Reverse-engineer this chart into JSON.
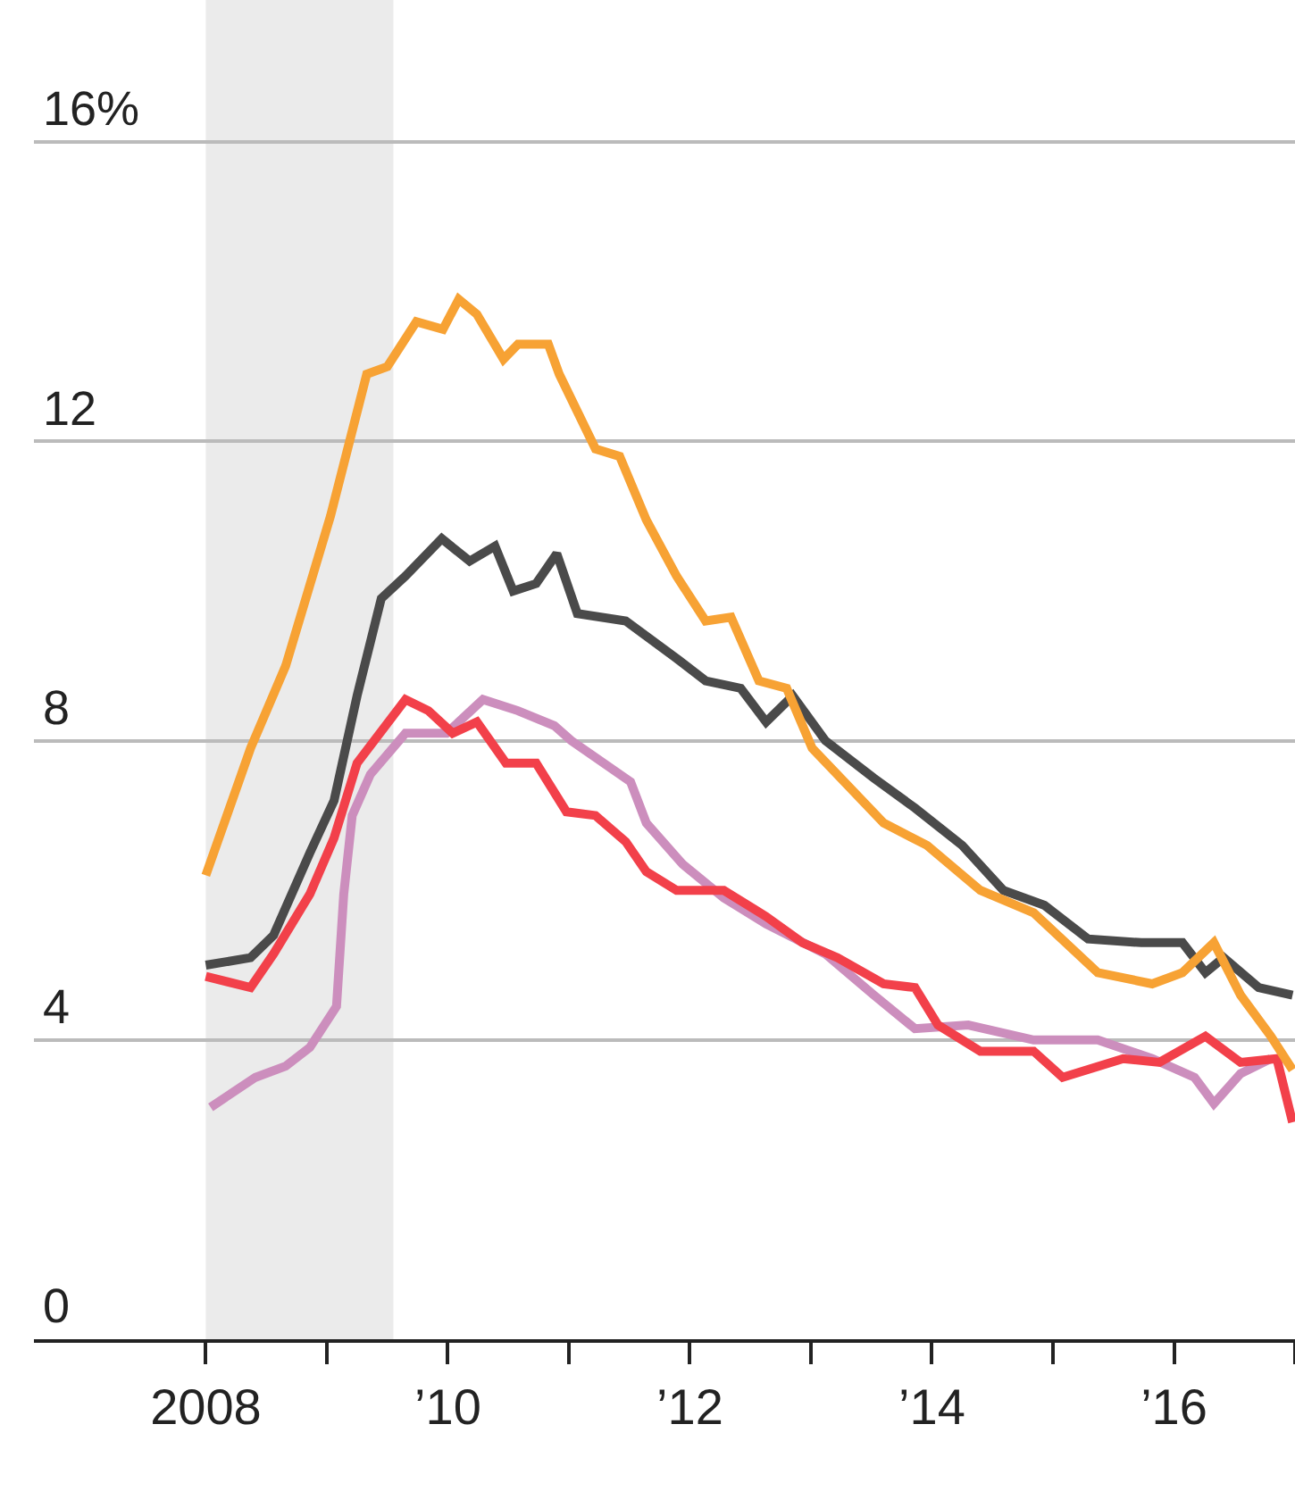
{
  "chart_data": {
    "type": "line",
    "xlim": [
      2006.58,
      2017.0
    ],
    "xticks": [
      {
        "value": 2008,
        "label": "2008"
      },
      {
        "value": 2009,
        "label": null
      },
      {
        "value": 2010,
        "label": "’10"
      },
      {
        "value": 2011,
        "label": null
      },
      {
        "value": 2012,
        "label": "’12"
      },
      {
        "value": 2013,
        "label": null
      },
      {
        "value": 2014,
        "label": "’14"
      },
      {
        "value": 2015,
        "label": null
      },
      {
        "value": 2016,
        "label": "’16"
      },
      {
        "value": 2017,
        "label": null
      }
    ],
    "ylim": [
      0,
      17.9
    ],
    "yticks": [
      0,
      4,
      8,
      12,
      {
        "value": 16,
        "label": "16%"
      }
    ],
    "grid": "y",
    "line_style": "solid",
    "bands": [
      {
        "axis": "x",
        "from": 2008,
        "to": 2009.55,
        "color": "#ebebeb"
      }
    ],
    "series": [
      {
        "color": "#4a4a4a",
        "x": [
          2008.0,
          2008.37,
          2008.56,
          2008.86,
          2009.06,
          2009.25,
          2009.45,
          2009.65,
          2009.95,
          2010.18,
          2010.39,
          2010.54,
          2010.73,
          2010.9,
          2011.07,
          2011.47,
          2011.89,
          2012.13,
          2012.42,
          2012.63,
          2012.85,
          2013.12,
          2013.52,
          2013.86,
          2014.25,
          2014.59,
          2014.93,
          2015.29,
          2015.73,
          2016.07,
          2016.26,
          2016.41,
          2016.7,
          2016.98
        ],
        "values": [
          5.0,
          5.1,
          5.4,
          6.5,
          7.2,
          8.6,
          9.9,
          10.2,
          10.7,
          10.4,
          10.6,
          10.0,
          10.1,
          10.5,
          9.7,
          9.6,
          9.1,
          8.8,
          8.7,
          8.25,
          8.6,
          8.0,
          7.5,
          7.1,
          6.6,
          6.0,
          5.8,
          5.35,
          5.3,
          5.3,
          4.9,
          5.1,
          4.7,
          4.6
        ]
      },
      {
        "color": "#cc8ebd",
        "x": [
          2008.04,
          2008.41,
          2008.66,
          2008.86,
          2009.08,
          2009.14,
          2009.21,
          2009.36,
          2009.65,
          2009.99,
          2010.29,
          2010.58,
          2010.88,
          2011.02,
          2011.51,
          2011.64,
          2011.94,
          2012.28,
          2012.63,
          2013.12,
          2013.52,
          2013.86,
          2014.3,
          2014.84,
          2015.37,
          2015.82,
          2016.17,
          2016.33,
          2016.55,
          2016.8
        ],
        "values": [
          3.1,
          3.5,
          3.65,
          3.9,
          4.45,
          5.95,
          7.0,
          7.55,
          8.1,
          8.1,
          8.55,
          8.4,
          8.2,
          8.0,
          7.45,
          6.9,
          6.35,
          5.9,
          5.55,
          5.15,
          4.6,
          4.15,
          4.2,
          4.0,
          4.0,
          3.75,
          3.5,
          3.15,
          3.55,
          3.75
        ]
      },
      {
        "color": "#f2404a",
        "x": [
          2008.0,
          2008.37,
          2008.56,
          2008.86,
          2009.06,
          2009.25,
          2009.65,
          2009.84,
          2010.04,
          2010.24,
          2010.48,
          2010.73,
          2010.98,
          2011.22,
          2011.47,
          2011.64,
          2011.89,
          2012.28,
          2012.63,
          2012.93,
          2013.22,
          2013.6,
          2013.86,
          2014.05,
          2014.4,
          2014.84,
          2015.08,
          2015.58,
          2015.88,
          2016.26,
          2016.55,
          2016.85,
          2016.98
        ],
        "values": [
          4.85,
          4.7,
          5.15,
          5.95,
          6.7,
          7.7,
          8.55,
          8.4,
          8.1,
          8.25,
          7.7,
          7.7,
          7.05,
          7.0,
          6.65,
          6.25,
          6.0,
          6.0,
          5.65,
          5.3,
          5.1,
          4.75,
          4.7,
          4.2,
          3.85,
          3.85,
          3.5,
          3.75,
          3.7,
          4.05,
          3.7,
          3.75,
          2.9
        ]
      },
      {
        "color": "#f7a234",
        "x": [
          2008.0,
          2008.37,
          2008.66,
          2009.03,
          2009.33,
          2009.5,
          2009.74,
          2009.96,
          2010.09,
          2010.24,
          2010.46,
          2010.58,
          2010.83,
          2010.92,
          2011.22,
          2011.42,
          2011.64,
          2011.89,
          2012.13,
          2012.34,
          2012.57,
          2012.8,
          2013.01,
          2013.6,
          2013.96,
          2014.4,
          2014.84,
          2015.37,
          2015.82,
          2016.07,
          2016.33,
          2016.55,
          2016.8,
          2016.98
        ],
        "values": [
          6.2,
          7.9,
          9.0,
          11.0,
          12.9,
          13.0,
          13.6,
          13.5,
          13.9,
          13.7,
          13.1,
          13.3,
          13.3,
          12.9,
          11.9,
          11.8,
          10.95,
          10.2,
          9.6,
          9.65,
          8.8,
          8.7,
          7.9,
          6.9,
          6.6,
          6.0,
          5.7,
          4.9,
          4.75,
          4.9,
          5.3,
          4.6,
          4.05,
          3.6
        ]
      }
    ]
  }
}
